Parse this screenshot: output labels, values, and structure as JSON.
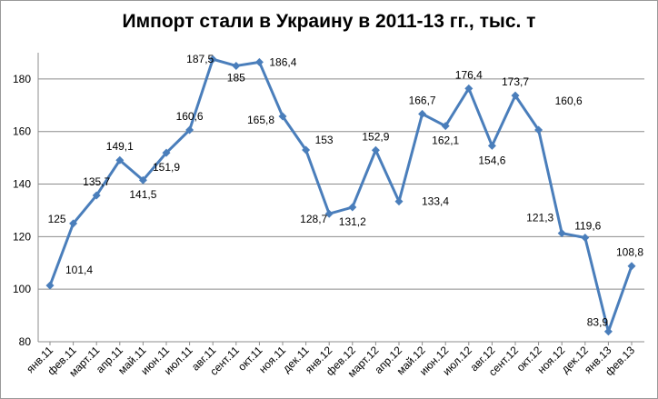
{
  "chart_data": {
    "type": "line",
    "title": "Импорт стали в Украину в 2011-13 гг., тыс. т",
    "xlabel": "",
    "ylabel": "",
    "ylim": [
      80,
      180
    ],
    "ylim_axis": [
      80,
      190
    ],
    "yticks": [
      80,
      100,
      120,
      140,
      160,
      180
    ],
    "grid": true,
    "legend": "none",
    "series_color": "#4A7EBB",
    "categories": [
      "янв.11",
      "фев.11",
      "март.11",
      "апр.11",
      "май.11",
      "июн.11",
      "июл.11",
      "авг.11",
      "сент.11",
      "окт.11",
      "ноя.11",
      "дек.11",
      "янв.12",
      "фев.12",
      "март.12",
      "апр.12",
      "май.12",
      "июн.12",
      "июл.12",
      "авг.12",
      "сент.12",
      "окт.12",
      "ноя.12",
      "дек.12",
      "янв.13",
      "фев.13"
    ],
    "values": [
      101.4,
      125,
      135.7,
      149.1,
      141.5,
      151.9,
      160.6,
      187.5,
      185,
      186.4,
      165.8,
      153,
      128.7,
      131.2,
      152.9,
      133.4,
      166.7,
      162.1,
      176.4,
      154.6,
      173.7,
      160.6,
      121.3,
      119.6,
      83.9,
      108.8
    ],
    "data_labels": [
      "101,4",
      "125",
      "135,7",
      "149,1",
      "141,5",
      "151,9",
      "160,6",
      "187,5",
      "185",
      "186,4",
      "165,8",
      "153",
      "128,7",
      "131,2",
      "152,9",
      "133,4",
      "166,7",
      "162,1",
      "176,4",
      "154,6",
      "173,7",
      "160,6",
      "121,3",
      "119,6",
      "83,9",
      "108,8"
    ]
  }
}
